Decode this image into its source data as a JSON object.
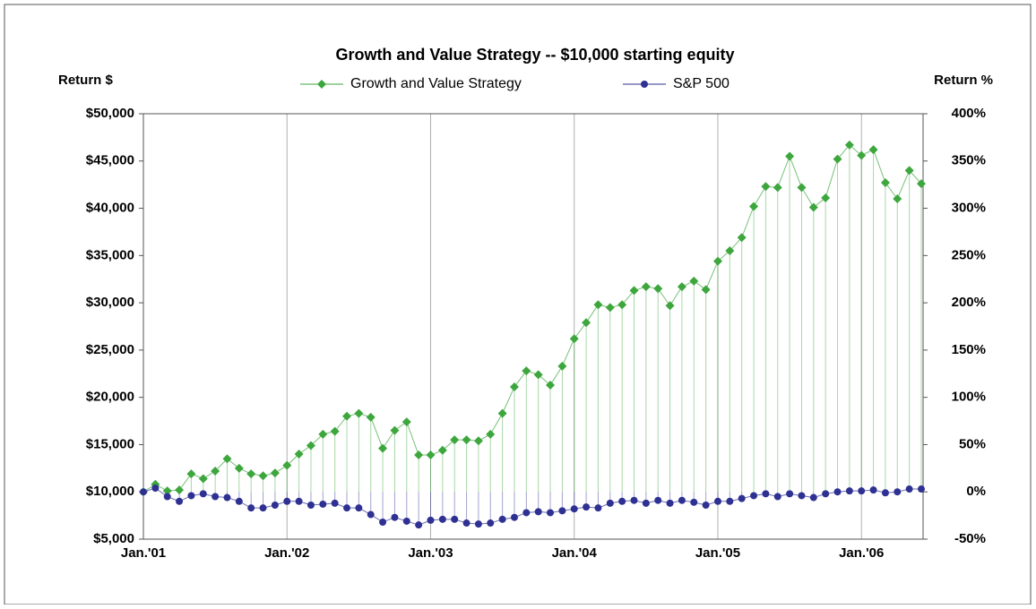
{
  "chart_data": {
    "type": "line",
    "title": "Growth and Value Strategy -- $10,000 starting equity",
    "y_label": "Return $",
    "y2_label": "Return %",
    "categories": [
      "Jan.'01",
      null,
      null,
      null,
      null,
      null,
      null,
      null,
      null,
      null,
      null,
      null,
      "Jan.'02",
      null,
      null,
      null,
      null,
      null,
      null,
      null,
      null,
      null,
      null,
      null,
      "Jan.'03",
      null,
      null,
      null,
      null,
      null,
      null,
      null,
      null,
      null,
      null,
      null,
      "Jan.'04",
      null,
      null,
      null,
      null,
      null,
      null,
      null,
      null,
      null,
      null,
      null,
      "Jan.'05",
      null,
      null,
      null,
      null,
      null,
      null,
      null,
      null,
      null,
      null,
      null,
      "Jan.'06",
      null,
      null,
      null,
      null,
      null
    ],
    "series": [
      {
        "name": "Growth and Value Strategy",
        "color": "#3da63d",
        "marker": "diamond",
        "values": [
          10000,
          10800,
          10100,
          10200,
          11900,
          11400,
          12200,
          13500,
          12500,
          11900,
          11700,
          12000,
          12800,
          14000,
          14900,
          16100,
          16400,
          18000,
          18300,
          17900,
          14600,
          16500,
          17400,
          13900,
          13900,
          14400,
          15500,
          15500,
          15400,
          16100,
          18300,
          21100,
          22800,
          22400,
          21300,
          23300,
          26200,
          27900,
          29800,
          29500,
          29800,
          31300,
          31700,
          31500,
          29700,
          31700,
          32300,
          31400,
          34400,
          35500,
          36900,
          40200,
          42300,
          42200,
          45500,
          42200,
          40100,
          41100,
          45200,
          46700,
          45600,
          46200,
          42700,
          41000,
          44000,
          42600
        ]
      },
      {
        "name": "S&P 500",
        "color": "#2e3192",
        "marker": "circle",
        "values": [
          10000,
          10400,
          9500,
          9000,
          9600,
          9800,
          9500,
          9400,
          9000,
          8300,
          8300,
          8600,
          9000,
          9000,
          8600,
          8700,
          8800,
          8300,
          8300,
          7600,
          6800,
          7300,
          6900,
          6500,
          7000,
          7100,
          7100,
          6700,
          6600,
          6700,
          7100,
          7300,
          7800,
          7900,
          7800,
          8000,
          8200,
          8400,
          8300,
          8800,
          9000,
          9100,
          8800,
          9100,
          8800,
          9100,
          8900,
          8600,
          9000,
          9000,
          9300,
          9600,
          9800,
          9500,
          9800,
          9600,
          9400,
          9800,
          10000,
          10100,
          10100,
          10200,
          9900,
          10000,
          10300,
          10300
        ]
      }
    ],
    "baseline": 10000,
    "ylim": [
      5000,
      50000
    ],
    "yticks": [
      {
        "value": 5000,
        "label": "$5,000"
      },
      {
        "value": 10000,
        "label": "$10,000"
      },
      {
        "value": 15000,
        "label": "$15,000"
      },
      {
        "value": 20000,
        "label": "$20,000"
      },
      {
        "value": 25000,
        "label": "$25,000"
      },
      {
        "value": 30000,
        "label": "$30,000"
      },
      {
        "value": 35000,
        "label": "$35,000"
      },
      {
        "value": 40000,
        "label": "$40,000"
      },
      {
        "value": 45000,
        "label": "$45,000"
      },
      {
        "value": 50000,
        "label": "$50,000"
      }
    ],
    "y2lim": [
      -50,
      400
    ],
    "y2ticks": [
      {
        "value": -50,
        "label": "-50%"
      },
      {
        "value": 0,
        "label": "0%"
      },
      {
        "value": 50,
        "label": "50%"
      },
      {
        "value": 100,
        "label": "100%"
      },
      {
        "value": 150,
        "label": "150%"
      },
      {
        "value": 200,
        "label": "200%"
      },
      {
        "value": 250,
        "label": "250%"
      },
      {
        "value": 300,
        "label": "300%"
      },
      {
        "value": 350,
        "label": "350%"
      },
      {
        "value": 400,
        "label": "400%"
      }
    ],
    "grid": "x",
    "legend": "top"
  }
}
